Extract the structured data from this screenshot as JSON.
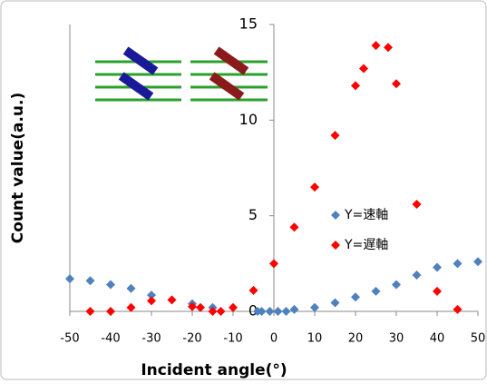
{
  "chart_data": {
    "type": "scatter",
    "x_label": "Incident angle(°)",
    "y_label": "Count value(a.u.)",
    "xlim": [
      -50,
      50
    ],
    "xticks": [
      -50,
      -40,
      -30,
      -20,
      -10,
      0,
      10,
      20,
      30,
      40,
      50
    ],
    "ylim": [
      0,
      15
    ],
    "yticks": [
      0,
      5,
      10,
      15
    ],
    "legend_position": "center-right",
    "series": [
      {
        "name": "Y=速軸",
        "color": "#4f81bd",
        "x": [
          -50,
          -45,
          -40,
          -35,
          -30,
          -20,
          -15,
          -4,
          -3,
          -1,
          1,
          3,
          5,
          10,
          15,
          20,
          25,
          30,
          35,
          40,
          45,
          50
        ],
        "values": [
          1.7,
          1.6,
          1.4,
          1.2,
          0.85,
          0.4,
          0.2,
          0,
          0,
          0,
          0,
          0,
          0.1,
          0.2,
          0.45,
          0.75,
          1.05,
          1.4,
          1.9,
          2.3,
          2.5,
          2.6
        ]
      },
      {
        "name": "Y=遅軸",
        "color": "#ff0000",
        "x": [
          -45,
          -40,
          -35,
          -30,
          -25,
          -20,
          -18,
          -15,
          -13,
          -10,
          -5,
          0,
          5,
          10,
          15,
          20,
          22,
          25,
          28,
          30,
          35,
          40,
          45
        ],
        "values": [
          0,
          0,
          0.2,
          0.55,
          0.6,
          0.25,
          0.2,
          0,
          0,
          0.2,
          1.1,
          2.5,
          4.4,
          6.5,
          9.2,
          11.8,
          12.7,
          13.9,
          13.8,
          11.9,
          5.6,
          1.05,
          0.1
        ]
      }
    ]
  }
}
